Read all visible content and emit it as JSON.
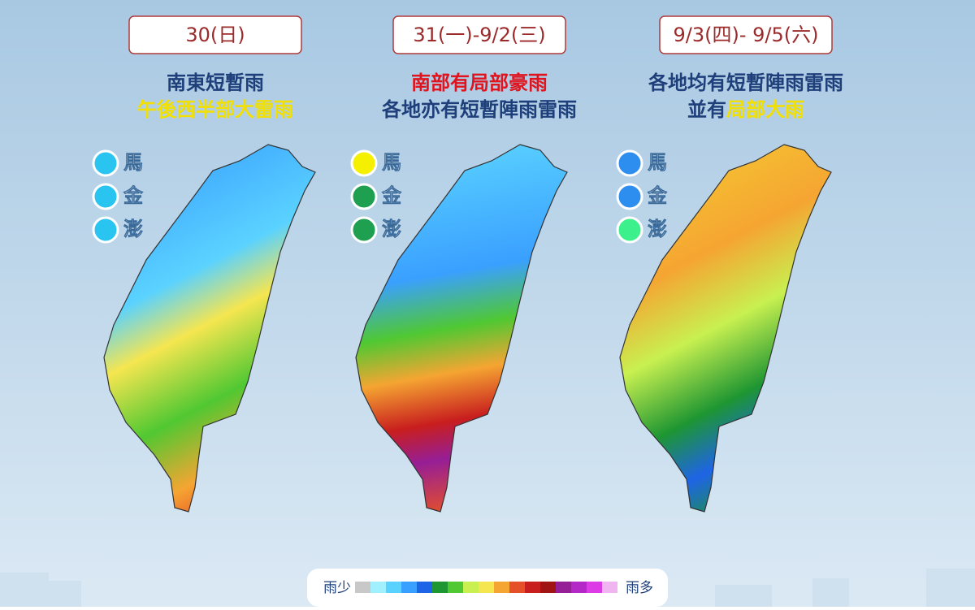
{
  "panels": [
    {
      "date": "30(日)",
      "headline": [
        [
          {
            "text": "南東短暫雨",
            "color": "#1f3f7a"
          }
        ],
        [
          {
            "text": "午後西半部大雷雨",
            "color": "#f2e000"
          }
        ]
      ],
      "islands": [
        {
          "name": "馬",
          "color": "#29c4f0"
        },
        {
          "name": "金",
          "color": "#29c4f0"
        },
        {
          "name": "澎",
          "color": "#29c4f0"
        }
      ]
    },
    {
      "date": "31(一)-9/2(三)",
      "headline": [
        [
          {
            "text": "南部有局部豪雨",
            "color": "#e0141e"
          }
        ],
        [
          {
            "text": "各地亦有短暫陣雨雷雨",
            "color": "#1f3f7a"
          }
        ]
      ],
      "islands": [
        {
          "name": "馬",
          "color": "#f5f000"
        },
        {
          "name": "金",
          "color": "#1ea050"
        },
        {
          "name": "澎",
          "color": "#1ea050"
        }
      ]
    },
    {
      "date": "9/3(四)- 9/5(六)",
      "headline": [
        [
          {
            "text": "各地均有短暫陣雨雷雨",
            "color": "#1f3f7a"
          }
        ],
        [
          {
            "text": "並有",
            "color": "#1f3f7a"
          },
          {
            "text": "局部大雨",
            "color": "#f2e000"
          }
        ]
      ],
      "islands": [
        {
          "name": "馬",
          "color": "#2e8ef0"
        },
        {
          "name": "金",
          "color": "#2e8ef0"
        },
        {
          "name": "澎",
          "color": "#3cf08c"
        }
      ]
    }
  ],
  "legend": {
    "low": "雨少",
    "high": "雨多",
    "colors": [
      "#c8c8c8",
      "#a0f0ff",
      "#5ad2ff",
      "#3aa0ff",
      "#1e64e6",
      "#1e9632",
      "#50c832",
      "#c8f050",
      "#f5e650",
      "#f5a532",
      "#e65028",
      "#c81e1e",
      "#a01414",
      "#961e96",
      "#b428c8",
      "#dc3ce6",
      "#f0b4f0"
    ]
  }
}
